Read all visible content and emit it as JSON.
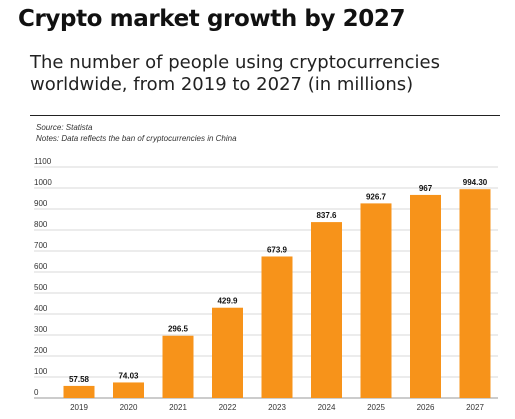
{
  "header": {
    "title": "Crypto market growth by 2027",
    "subtitle": "The number of people using cryptocurrencies worldwide, from 2019 to 2027 (in millions)",
    "source": "Source: Statista",
    "notes": "Notes: Data reflects the ban of cryptocurrencies in China"
  },
  "chart_data": {
    "type": "bar",
    "title": "Crypto market growth by 2027",
    "subtitle": "The number of people using cryptocurrencies worldwide, from 2019 to 2027 (in millions)",
    "xlabel": "",
    "ylabel": "",
    "categories": [
      "2019",
      "2020",
      "2021",
      "2022",
      "2023",
      "2024",
      "2025",
      "2026",
      "2027"
    ],
    "values": [
      57.58,
      74.03,
      296.5,
      429.9,
      673.9,
      837.6,
      926.7,
      967,
      994.3
    ],
    "value_labels": [
      "57.58",
      "74.03",
      "296.5",
      "429.9",
      "673.9",
      "837.6",
      "926.7",
      "967",
      "994.30"
    ],
    "ylim": [
      0,
      1100
    ],
    "yticks": [
      0,
      100,
      200,
      300,
      400,
      500,
      600,
      700,
      800,
      900,
      1000,
      1100
    ],
    "grid": true,
    "legend": "none",
    "bar_color": "#f7931a",
    "grid_color": "#d9d9d9"
  }
}
